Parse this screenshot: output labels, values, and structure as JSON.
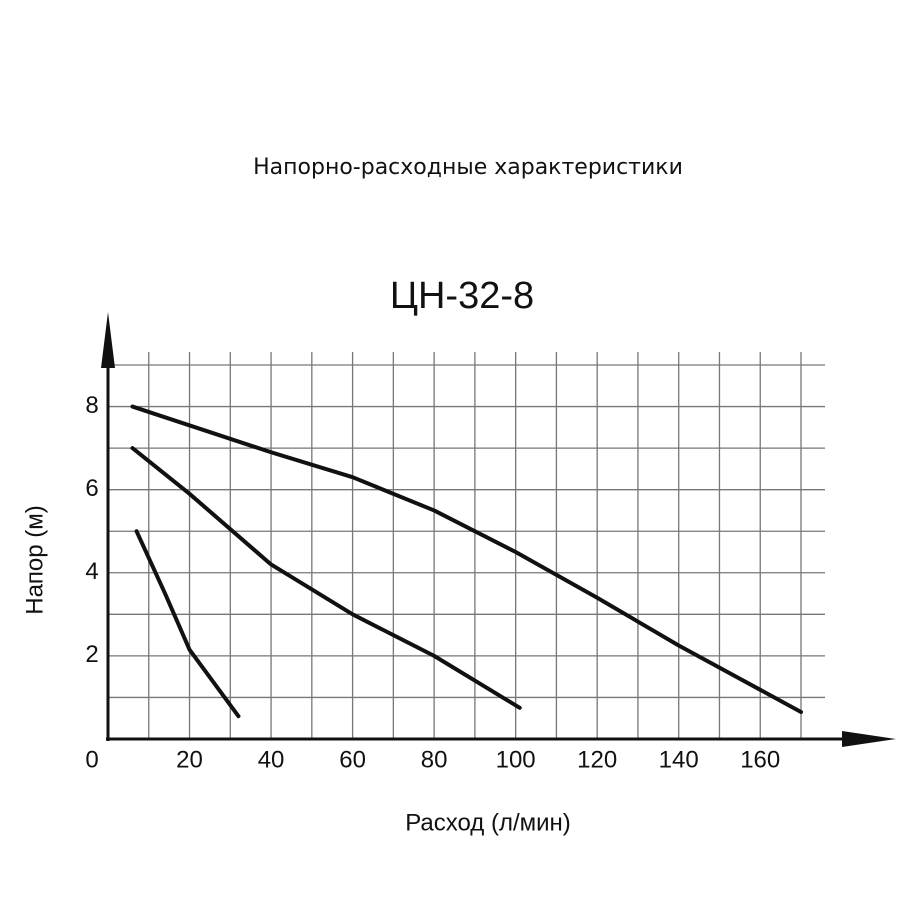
{
  "chart_data": {
    "type": "line",
    "title": "Напорно-расходные характеристики",
    "subtitle": "ЦН-32-8",
    "x_label": "Расход (л/мин)",
    "y_label": "Напор (м)",
    "xlim": [
      0,
      170
    ],
    "xticks": [
      0,
      20,
      40,
      60,
      80,
      100,
      120,
      140,
      160
    ],
    "ylim": [
      0,
      9
    ],
    "yticks": [
      2,
      4,
      6,
      8
    ],
    "grid": true,
    "series": [
      {
        "color": "#111111",
        "x": [
          6,
          40,
          60,
          80,
          100,
          120,
          140,
          170
        ],
        "values": [
          8,
          6.9,
          6.3,
          5.5,
          4.5,
          3.4,
          2.25,
          0.65
        ]
      },
      {
        "color": "#111111",
        "x": [
          6,
          20,
          40,
          60,
          80,
          101
        ],
        "values": [
          7,
          5.9,
          4.2,
          3.0,
          2.0,
          0.75
        ]
      },
      {
        "color": "#111111",
        "x": [
          7,
          14,
          20,
          32
        ],
        "values": [
          5,
          3.5,
          2.15,
          0.55
        ]
      }
    ]
  }
}
